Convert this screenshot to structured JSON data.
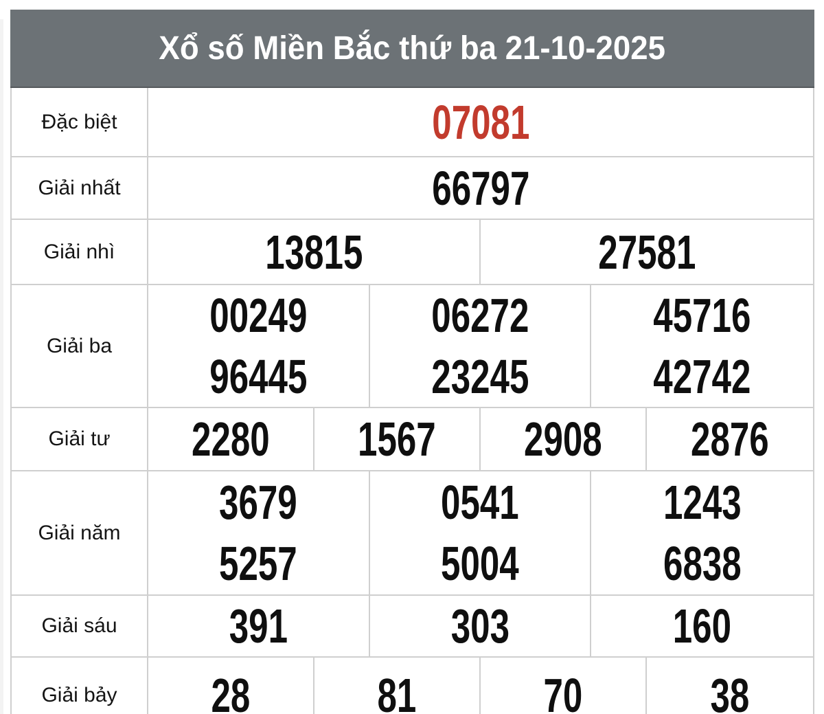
{
  "title": "Xổ số Miền Bắc thứ ba 21-10-2025",
  "colors": {
    "header_background": "#6c7276",
    "title_text": "#ffffff",
    "special_prize_text": "#c23b2d",
    "number_text": "#0f0f0f",
    "grid_border": "#cfcfcf",
    "cell_background": "#ffffff"
  },
  "rows": [
    {
      "label": "Đặc biệt",
      "columns": 1,
      "special": true,
      "values": [
        "07081"
      ]
    },
    {
      "label": "Giải nhất",
      "columns": 1,
      "special": false,
      "values": [
        "66797"
      ]
    },
    {
      "label": "Giải nhì",
      "columns": 2,
      "special": false,
      "values": [
        "13815",
        "27581"
      ]
    },
    {
      "label": "Giải ba",
      "columns": 3,
      "special": false,
      "values": [
        "00249",
        "06272",
        "45716",
        "96445",
        "23245",
        "42742"
      ]
    },
    {
      "label": "Giải tư",
      "columns": 4,
      "special": false,
      "values": [
        "2280",
        "1567",
        "2908",
        "2876"
      ]
    },
    {
      "label": "Giải năm",
      "columns": 3,
      "special": false,
      "values": [
        "3679",
        "0541",
        "1243",
        "5257",
        "5004",
        "6838"
      ]
    },
    {
      "label": "Giải sáu",
      "columns": 3,
      "special": false,
      "values": [
        "391",
        "303",
        "160"
      ]
    },
    {
      "label": "Giải bảy",
      "columns": 4,
      "special": false,
      "values": [
        "28",
        "81",
        "70",
        "38"
      ]
    }
  ]
}
